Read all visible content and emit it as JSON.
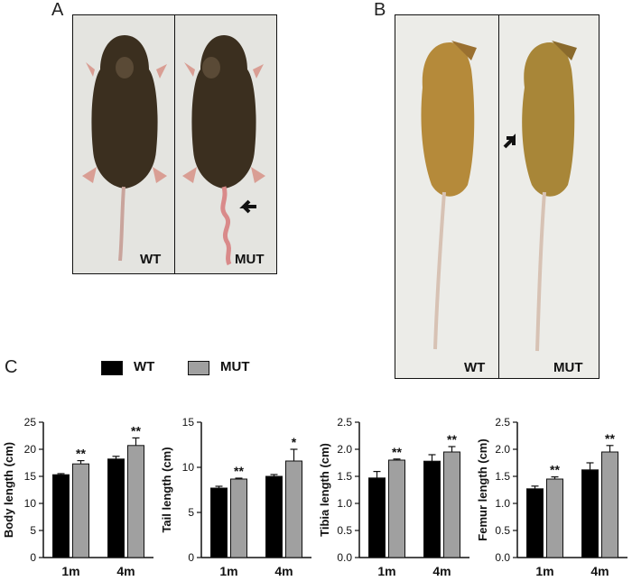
{
  "panels": {
    "a": {
      "letter": "A",
      "left_label": "WT",
      "right_label": "MUT"
    },
    "b": {
      "letter": "B",
      "left_label": "WT",
      "right_label": "MUT"
    },
    "c": {
      "letter": "C"
    }
  },
  "legend": [
    {
      "name": "WT",
      "color": "#000000"
    },
    {
      "name": "MUT",
      "color": "#a0a0a0"
    }
  ],
  "colors": {
    "wt": "#000000",
    "mut": "#a0a0a0",
    "photo_bg": "#e6e6e0"
  },
  "chart_data": [
    {
      "type": "bar",
      "categories": [
        "1m",
        "4m"
      ],
      "ylabel": "Body length (cm)",
      "ylim": [
        0,
        25
      ],
      "yticks": [
        0,
        5,
        10,
        15,
        20,
        25
      ],
      "series": [
        {
          "name": "WT",
          "values": [
            15.3,
            18.2
          ],
          "errors": [
            0.2,
            0.5
          ]
        },
        {
          "name": "MUT",
          "values": [
            17.3,
            20.7
          ],
          "errors": [
            0.6,
            1.4
          ]
        }
      ],
      "annotations": [
        "**",
        "**"
      ]
    },
    {
      "type": "bar",
      "categories": [
        "1m",
        "4m"
      ],
      "ylabel": "Tail length (cm)",
      "ylim": [
        0,
        15
      ],
      "yticks": [
        0,
        5,
        10,
        15
      ],
      "series": [
        {
          "name": "WT",
          "values": [
            7.7,
            9.0
          ],
          "errors": [
            0.2,
            0.2
          ]
        },
        {
          "name": "MUT",
          "values": [
            8.7,
            10.7
          ],
          "errors": [
            0.1,
            1.3
          ]
        }
      ],
      "annotations": [
        "**",
        "*"
      ]
    },
    {
      "type": "bar",
      "categories": [
        "1m",
        "4m"
      ],
      "ylabel": "Tibia length (cm)",
      "ylim": [
        0,
        2.5
      ],
      "yticks": [
        "0.0",
        "0.5",
        "1.0",
        "1.5",
        "2.0",
        "2.5"
      ],
      "series": [
        {
          "name": "WT",
          "values": [
            1.47,
            1.78
          ],
          "errors": [
            0.12,
            0.12
          ]
        },
        {
          "name": "MUT",
          "values": [
            1.8,
            1.95
          ],
          "errors": [
            0.02,
            0.1
          ]
        }
      ],
      "annotations": [
        "**",
        "**"
      ]
    },
    {
      "type": "bar",
      "categories": [
        "1m",
        "4m"
      ],
      "ylabel": "Femur length (cm)",
      "ylim": [
        0,
        2.5
      ],
      "yticks": [
        "0.0",
        "0.5",
        "1.0",
        "1.5",
        "2.0",
        "2.5"
      ],
      "series": [
        {
          "name": "WT",
          "values": [
            1.27,
            1.62
          ],
          "errors": [
            0.05,
            0.13
          ]
        },
        {
          "name": "MUT",
          "values": [
            1.45,
            1.95
          ],
          "errors": [
            0.04,
            0.12
          ]
        }
      ],
      "annotations": [
        "**",
        "**"
      ]
    }
  ]
}
